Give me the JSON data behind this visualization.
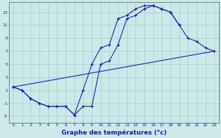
{
  "xlabel": "Graphe des températures (°c)",
  "background_color": "#cce8e8",
  "grid_color": "#aacfcf",
  "line_color": "#1a1aaa",
  "curve1_x": [
    0,
    1,
    2,
    3,
    4,
    5,
    6,
    7,
    8,
    9,
    10,
    11,
    12,
    13,
    14,
    15,
    16,
    17,
    18,
    19,
    20,
    21,
    22,
    23
  ],
  "curve1_y": [
    1.5,
    1.0,
    -0.3,
    -1.0,
    -1.5,
    -1.5,
    -1.5,
    -2.8,
    1.0,
    5.0,
    7.5,
    8.0,
    12.0,
    12.5,
    13.5,
    14.0,
    14.0,
    13.5,
    13.0,
    11.0,
    9.0,
    8.5,
    7.5,
    7.0
  ],
  "curve2_x": [
    0,
    1,
    2,
    3,
    4,
    5,
    6,
    7,
    8,
    9,
    10,
    11,
    12,
    13,
    14,
    15,
    16,
    17,
    18,
    19
  ],
  "curve2_y": [
    1.5,
    1.0,
    -0.3,
    -1.0,
    -1.5,
    -1.5,
    -1.5,
    -2.8,
    -1.5,
    -1.5,
    5.0,
    5.5,
    8.0,
    12.0,
    12.5,
    13.5,
    14.0,
    13.5,
    13.0,
    11.0
  ],
  "line3_x": [
    0,
    23
  ],
  "line3_y": [
    1.5,
    7.0
  ],
  "ylim": [
    -4,
    14.5
  ],
  "yticks": [
    -3,
    -1,
    1,
    3,
    5,
    7,
    9,
    11,
    13
  ],
  "xlim": [
    -0.5,
    23.5
  ],
  "xticks": [
    0,
    1,
    2,
    3,
    4,
    5,
    6,
    7,
    8,
    9,
    10,
    11,
    12,
    13,
    14,
    15,
    16,
    17,
    18,
    19,
    20,
    21,
    22,
    23
  ]
}
